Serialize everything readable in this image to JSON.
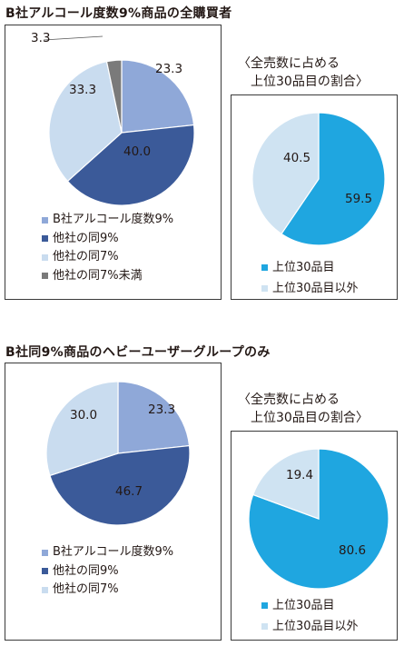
{
  "sections": [
    {
      "title": "B社アルコール度数9%商品の全購買者",
      "subhead": [
        "〈全売数に占める",
        "上位30品目の割合〉"
      ]
    },
    {
      "title": "B社同9%商品のヘビーユーザーグループのみ",
      "subhead": [
        "〈全売数に占める",
        "上位30品目の割合〉"
      ]
    }
  ],
  "colors": {
    "light_blue": "#8fa8d8",
    "navy": "#3b5a99",
    "pale_blue": "#c9dcef",
    "gray": "#7a7a7a",
    "cyan": "#1fa6e0",
    "pale_cyan": "#cfe3f2"
  },
  "chart_data": [
    {
      "type": "pie",
      "title": "B社アルコール度数9%商品の全購買者",
      "labels": [
        "B社アルコール度数9%",
        "他社の同9%",
        "他社の同7%",
        "他社の同7%未満"
      ],
      "values": [
        23.3,
        40.0,
        33.3,
        3.3
      ],
      "value_labels": [
        "23.3",
        "40.0",
        "33.3",
        "3.3"
      ],
      "colors": [
        "#8fa8d8",
        "#3b5a99",
        "#c9dcef",
        "#7a7a7a"
      ],
      "legend_position": "bottom"
    },
    {
      "type": "pie",
      "title": "〈全売数に占める 上位30品目の割合〉",
      "labels": [
        "上位30品目",
        "上位30品目以外"
      ],
      "values": [
        59.5,
        40.5
      ],
      "value_labels": [
        "59.5",
        "40.5"
      ],
      "colors": [
        "#1fa6e0",
        "#cfe3f2"
      ],
      "legend_position": "bottom"
    },
    {
      "type": "pie",
      "title": "B社同9%商品のヘビーユーザーグループのみ",
      "labels": [
        "B社アルコール度数9%",
        "他社の同9%",
        "他社の同7%"
      ],
      "values": [
        23.3,
        46.7,
        30.0
      ],
      "value_labels": [
        "23.3",
        "46.7",
        "30.0"
      ],
      "colors": [
        "#8fa8d8",
        "#3b5a99",
        "#c9dcef"
      ],
      "legend_position": "bottom"
    },
    {
      "type": "pie",
      "title": "〈全売数に占める 上位30品目の割合〉",
      "labels": [
        "上位30品目",
        "上位30品目以外"
      ],
      "values": [
        80.6,
        19.4
      ],
      "value_labels": [
        "80.6",
        "19.4"
      ],
      "colors": [
        "#1fa6e0",
        "#cfe3f2"
      ],
      "legend_position": "bottom"
    }
  ]
}
